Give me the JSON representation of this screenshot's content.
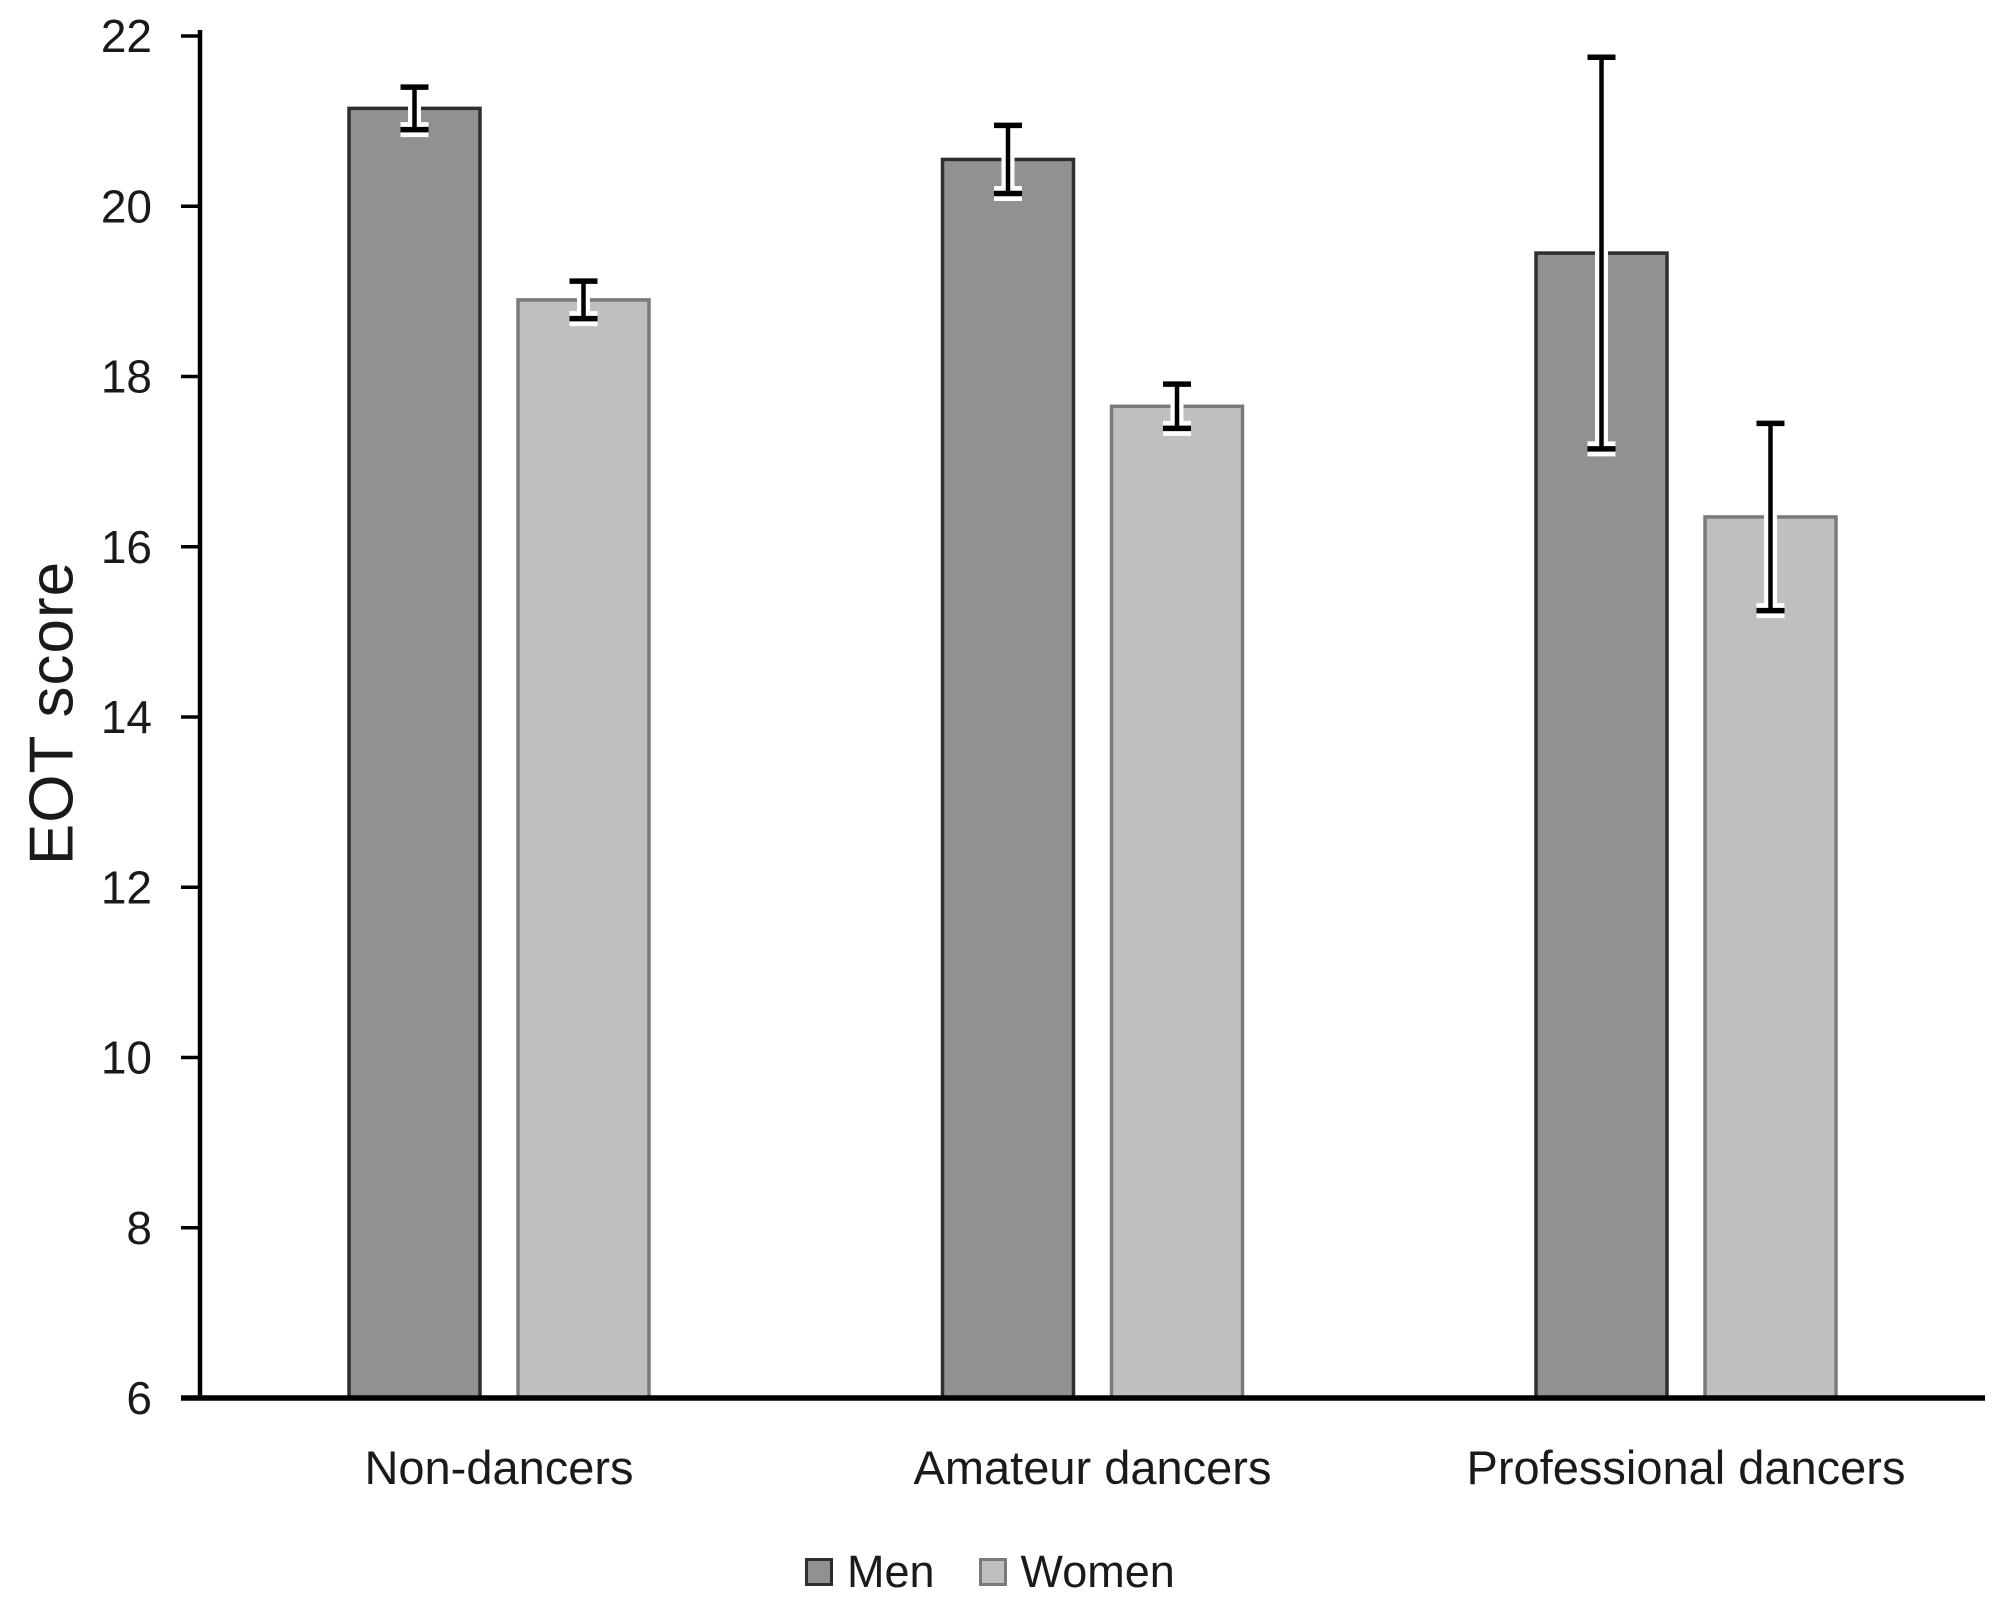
{
  "chart_data": {
    "type": "bar",
    "title": "",
    "ylabel": "EOT score",
    "xlabel": "",
    "categories": [
      "Non-dancers",
      "Amateur dancers",
      "Professional dancers"
    ],
    "series": [
      {
        "name": "Men",
        "values": [
          21.15,
          20.55,
          19.45
        ],
        "errors": [
          0.25,
          0.4,
          2.3
        ],
        "fill": "#919191",
        "stroke": "#2e2e2e"
      },
      {
        "name": "Women",
        "values": [
          18.9,
          17.65,
          16.35
        ],
        "errors": [
          0.22,
          0.26,
          1.1
        ],
        "fill": "#bfbfbf",
        "stroke": "#7a7a7a"
      }
    ],
    "ylim": [
      6,
      22
    ],
    "ytick_step": 2,
    "ytick_labels": [
      "6",
      "8",
      "10",
      "12",
      "14",
      "16",
      "18",
      "20",
      "22"
    ],
    "grid": false,
    "legend_position": "bottom",
    "error_bars": true,
    "error_bar_color": "#000000",
    "error_bar_halo": "#ffffff",
    "axis_color": "#000000",
    "text_color": "#1a1a1a",
    "background": "#ffffff"
  }
}
